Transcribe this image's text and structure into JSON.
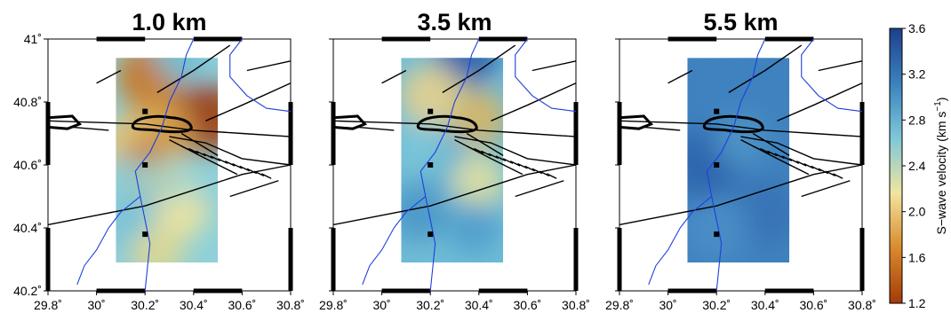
{
  "panels": [
    {
      "title": "1.0 km",
      "show_y_labels": true
    },
    {
      "title": "3.5 km",
      "show_y_labels": false
    },
    {
      "title": "5.5 km",
      "show_y_labels": false
    }
  ],
  "x_ticks": [
    {
      "value": 29.8,
      "label": "29.8˚"
    },
    {
      "value": 30.0,
      "label": "30˚"
    },
    {
      "value": 30.2,
      "label": "30.2˚"
    },
    {
      "value": 30.4,
      "label": "30.4˚"
    },
    {
      "value": 30.6,
      "label": "30.6˚"
    },
    {
      "value": 30.8,
      "label": "30.8˚"
    }
  ],
  "y_ticks": [
    {
      "value": 41.0,
      "label": "41˚"
    },
    {
      "value": 40.8,
      "label": "40.8˚"
    },
    {
      "value": 40.6,
      "label": "40.6˚"
    },
    {
      "value": 40.4,
      "label": "40.4˚"
    },
    {
      "value": 40.2,
      "label": "40.2˚"
    }
  ],
  "colorbar": {
    "label": "S−wave velocity  (km s",
    "superscript": "−1",
    "label_close": ")",
    "ticks": [
      "3.6",
      "3.2",
      "2.8",
      "2.4",
      "2.0",
      "1.6",
      "1.2"
    ],
    "min": 1.2,
    "max": 3.6,
    "colors": [
      "#a33a08",
      "#d98a2c",
      "#f2e49e",
      "#7ec8d8",
      "#3a82bd",
      "#1e3f8c"
    ]
  },
  "stations": [
    "station-1",
    "station-2",
    "station-3"
  ]
}
